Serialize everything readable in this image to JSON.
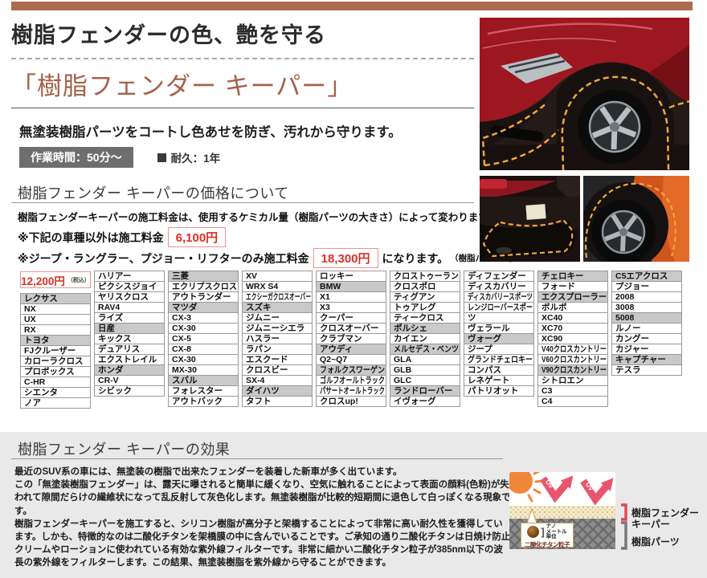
{
  "header": {
    "title": "樹脂フェンダーの色、艶を守る",
    "product_title": "「樹脂フェンダー キーパー」",
    "lead": "無塗装樹脂パーツをコートし色あせを防ぎ、汚れから守ります。",
    "work_time_badge": "作業時間：50分〜",
    "durability_label": "耐久：1年"
  },
  "price_section": {
    "heading": "樹脂フェンダー キーパーの価格について",
    "description": "樹脂フェンダーキーパーの施工料金は、使用するケミカル量（樹脂パーツの大きさ）によって変わります。",
    "note1_prefix": "※下記の車種以外は施工料金",
    "note1_price": "6,100円",
    "note2_prefix": "※ジープ・ラングラー、プジョー・リフターのみ施工料金",
    "note2_price": "18,300円",
    "note2_suffix": "になります。",
    "note2_small": "（樹脂パーツが多いため）"
  },
  "table": {
    "price": "12,200円",
    "price_tax": "（税込）",
    "columns": [
      [
        {
          "t": "レクサス",
          "h": true
        },
        {
          "t": "NX"
        },
        {
          "t": "UX"
        },
        {
          "t": "RX"
        },
        {
          "t": "トヨタ",
          "h": true
        },
        {
          "t": "FJクルーザー"
        },
        {
          "t": "カローラクロス"
        },
        {
          "t": "プロボックス"
        },
        {
          "t": "C-HR"
        },
        {
          "t": "シエンタ"
        },
        {
          "t": "ノア"
        }
      ],
      [
        {
          "t": "ハリアー"
        },
        {
          "t": "ピクシスジョイ"
        },
        {
          "t": "ヤリスクロス"
        },
        {
          "t": "RAV4"
        },
        {
          "t": "ライズ"
        },
        {
          "t": "日産",
          "h": true
        },
        {
          "t": "キックス"
        },
        {
          "t": "デュアリス"
        },
        {
          "t": "エクストレイル"
        },
        {
          "t": "ホンダ",
          "h": true
        },
        {
          "t": "CR-V"
        },
        {
          "t": "シビック"
        }
      ],
      [
        {
          "t": "三菱",
          "h": true
        },
        {
          "t": "エクリプスクロス"
        },
        {
          "t": "アウトランダー"
        },
        {
          "t": "マツダ",
          "h": true
        },
        {
          "t": "CX-3"
        },
        {
          "t": "CX-30"
        },
        {
          "t": "CX-5"
        },
        {
          "t": "CX-8"
        },
        {
          "t": "CX-30"
        },
        {
          "t": "MX-30"
        },
        {
          "t": "スバル",
          "h": true
        },
        {
          "t": "フォレスター"
        },
        {
          "t": "アウトバック"
        }
      ],
      [
        {
          "t": "XV"
        },
        {
          "t": "WRX S4"
        },
        {
          "t": "エクシーガクロスオーバー"
        },
        {
          "t": "スズキ",
          "h": true
        },
        {
          "t": "ジムニー"
        },
        {
          "t": "ジムニーシエラ"
        },
        {
          "t": "ハスラー"
        },
        {
          "t": "ラパン"
        },
        {
          "t": "エスクード"
        },
        {
          "t": "クロスビー"
        },
        {
          "t": "SX-4"
        },
        {
          "t": "ダイハツ",
          "h": true
        },
        {
          "t": "タフト"
        }
      ],
      [
        {
          "t": "ロッキー"
        },
        {
          "t": "BMW",
          "h": true
        },
        {
          "t": "X1"
        },
        {
          "t": "X3"
        },
        {
          "t": "クーパー"
        },
        {
          "t": "クロスオーバー"
        },
        {
          "t": "クラブマン"
        },
        {
          "t": "アウディ",
          "h": true
        },
        {
          "t": "Q2~Q7"
        },
        {
          "t": "フォルクスワーゲン",
          "h": true
        },
        {
          "t": "ゴルフオールトラック"
        },
        {
          "t": "パサートオールトラック"
        },
        {
          "t": "クロスup!"
        }
      ],
      [
        {
          "t": "クロストゥーラン"
        },
        {
          "t": "クロスポロ"
        },
        {
          "t": "ティグアン"
        },
        {
          "t": "トゥアレグ"
        },
        {
          "t": "ティークロス"
        },
        {
          "t": "ポルシェ",
          "h": true
        },
        {
          "t": "カイエン"
        },
        {
          "t": "メルセデス・ベンツ",
          "h": true
        },
        {
          "t": "GLA"
        },
        {
          "t": "GLB"
        },
        {
          "t": "GLC"
        },
        {
          "t": "ランドローバー",
          "h": true
        },
        {
          "t": "イヴォーグ"
        }
      ],
      [
        {
          "t": "ディフェンダー"
        },
        {
          "t": "ディスカバリー"
        },
        {
          "t": "ディスカバリースポーツ"
        },
        {
          "t": "レンジローバースポー"
        },
        {
          "t": "ツ"
        },
        {
          "t": "ヴェラール"
        },
        {
          "t": "ヴォーグ",
          "h": true
        },
        {
          "t": "ジープ"
        },
        {
          "t": "グランドチェロキー"
        },
        {
          "t": "コンパス"
        },
        {
          "t": "レネゲート"
        },
        {
          "t": "パトリオット"
        }
      ],
      [
        {
          "t": "チェロキー",
          "h": true
        },
        {
          "t": "フォード"
        },
        {
          "t": "エクスプローラー",
          "h": true
        },
        {
          "t": "ボルボ"
        },
        {
          "t": "XC40"
        },
        {
          "t": "XC70"
        },
        {
          "t": "XC90"
        },
        {
          "t": "V40クロスカントリー"
        },
        {
          "t": "V60クロスカントリー"
        },
        {
          "t": "V90クロスカントリー",
          "h": true
        },
        {
          "t": "シトロエン"
        },
        {
          "t": "C3"
        },
        {
          "t": "C4"
        }
      ],
      [
        {
          "t": "C5エアクロス",
          "h": true
        },
        {
          "t": "プジョー"
        },
        {
          "t": "2008"
        },
        {
          "t": "3008"
        },
        {
          "t": "5008",
          "h": true
        },
        {
          "t": "ルノー"
        },
        {
          "t": "カングー"
        },
        {
          "t": "カジャー"
        },
        {
          "t": "キャプチャー",
          "h": true
        },
        {
          "t": "テスラ"
        }
      ]
    ]
  },
  "effect_section": {
    "heading": "樹脂フェンダー キーパーの効果",
    "paragraphs": [
      "最近のSUV系の車には、無塗装の樹脂で出来たフェンダーを装着した新車が多く出ています。",
      "この「無塗装樹脂フェンダー」は、露天に曝されると簡単に緩くなり、空気に触れることによって表面の顔料(色粉)が失われて隙間だらけの繊維状になって乱反射して灰色化します。無塗装樹脂が比較的短期間に退色して白っぽくなる現象です。",
      "樹脂フェンダーキーパーを施工すると、シリコン樹脂が高分子と架橋することによって非常に高い耐久性を獲得しています。しかも、特徴的なのは二酸化チタンを架橋膜の中に含んでいることです。ご承知の通り二酸化チタンは日焼け防止クリームやローションに使われている有効な紫外線フィルターです。非常に細かい二酸化チタン粒子が385nm以下の波長の紫外線をフィルターします。この結果、無塗装樹脂を紫外線から守ることができます。"
    ]
  },
  "diagram": {
    "uv_label": "UV",
    "nano_label": "ナノ\nメートル\n単位",
    "particle_label": "二酸化チタン粒子",
    "keeper_label": "樹脂フェンダー\nキーパー",
    "parts_label": "樹脂パーツ"
  },
  "colors": {
    "brand_brown_bar": "#ad6b50",
    "product_title_brown": "#a5604a",
    "price_red": "#d93025",
    "price_box_border": "#ef9191",
    "table_header_gray": "#c9c9c9",
    "badge_gray": "#6e6e6e",
    "bottom_section_bg": "#e9e9e9",
    "dashed_outline_orange": "#f5a53c",
    "uv_arrow_pink": "#e8566e",
    "coat_layer_tan": "#f5e9c6",
    "resin_layer_gray": "#8d8d8d"
  }
}
